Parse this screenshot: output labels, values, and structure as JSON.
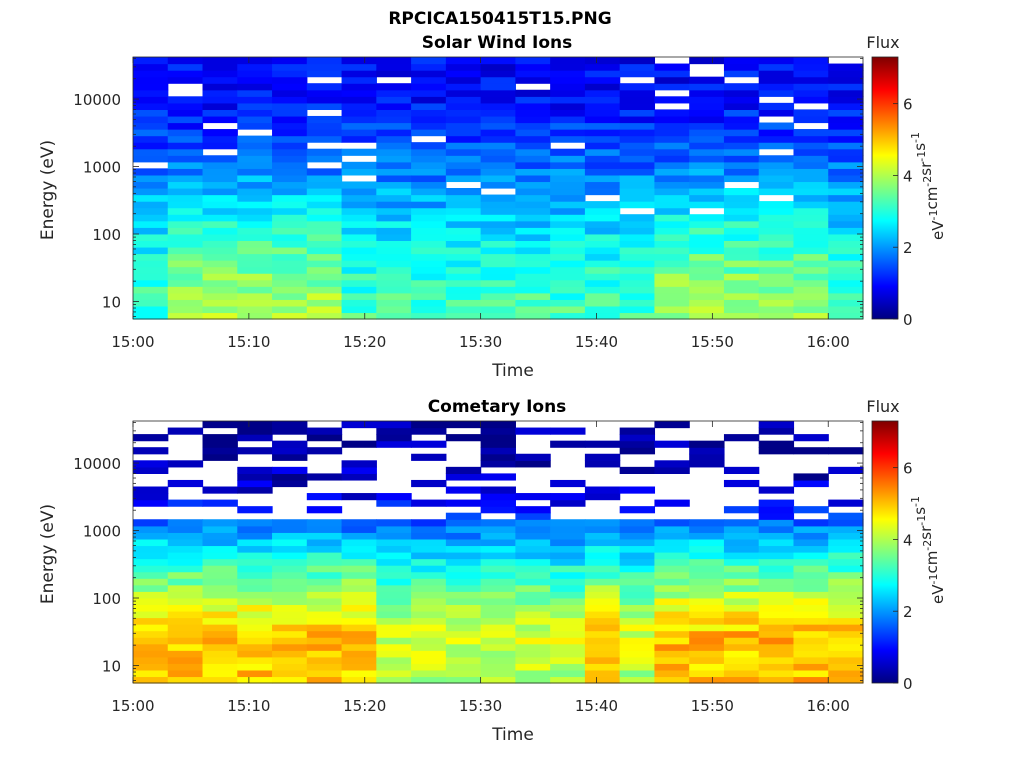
{
  "figure_title": "RPCICA150415T15.PNG",
  "colors": {
    "colormap": "jet",
    "colormap_stops": [
      "#00007f",
      "#0000ff",
      "#007fff",
      "#00ffff",
      "#7fff7f",
      "#ffff00",
      "#ff7f00",
      "#ff0000",
      "#7f0000"
    ]
  },
  "chart_data": [
    {
      "type": "heatmap",
      "title": "Solar Wind Ions",
      "xlabel": "Time",
      "ylabel": "Energy (eV)",
      "x_ticks": [
        "15:00",
        "15:10",
        "15:20",
        "15:30",
        "15:40",
        "15:50",
        "16:00"
      ],
      "xlim": [
        "15:00",
        "16:03"
      ],
      "y_scale": "log",
      "y_ticks": [
        "10",
        "100",
        "1000",
        "10000"
      ],
      "ylim": [
        5.5,
        42000
      ],
      "colorbar": {
        "title": "Flux",
        "unit": "eV-1cm-2sr-1s-1",
        "range": [
          0,
          7.3
        ],
        "ticks": [
          "0",
          "2",
          "4",
          "6"
        ]
      },
      "time_bins": 21,
      "bright_columns_minutes": [
        6,
        9,
        12,
        15,
        48,
        54,
        57
      ],
      "flux_profile_by_energy": [
        {
          "energy_eV": 8,
          "flux": 3.2
        },
        {
          "energy_eV": 30,
          "flux": 3.0
        },
        {
          "energy_eV": 100,
          "flux": 2.6
        },
        {
          "energy_eV": 300,
          "flux": 2.2
        },
        {
          "energy_eV": 1000,
          "flux": 1.7
        },
        {
          "energy_eV": 3000,
          "flux": 1.3
        },
        {
          "energy_eV": 10000,
          "flux": 1.0
        },
        {
          "energy_eV": 30000,
          "flux": 0.9
        }
      ]
    },
    {
      "type": "heatmap",
      "title": "Cometary Ions",
      "xlabel": "Time",
      "ylabel": "Energy (eV)",
      "x_ticks": [
        "15:00",
        "15:10",
        "15:20",
        "15:30",
        "15:40",
        "15:50",
        "16:00"
      ],
      "xlim": [
        "15:00",
        "16:03"
      ],
      "y_scale": "log",
      "y_ticks": [
        "10",
        "100",
        "1000",
        "10000"
      ],
      "ylim": [
        5.5,
        42000
      ],
      "colorbar": {
        "title": "Flux",
        "unit": "eV-1cm-2sr-1s-1",
        "range": [
          0,
          7.3
        ],
        "ticks": [
          "0",
          "2",
          "4",
          "6"
        ]
      },
      "time_bins": 21,
      "bright_columns_minutes": [
        3,
        6,
        9,
        12,
        15,
        18,
        41,
        48,
        54,
        57,
        60
      ],
      "flux_profile_by_energy": [
        {
          "energy_eV": 8,
          "flux": 4.0
        },
        {
          "energy_eV": 30,
          "flux": 4.3
        },
        {
          "energy_eV": 100,
          "flux": 3.6
        },
        {
          "energy_eV": 300,
          "flux": 2.8
        },
        {
          "energy_eV": 1000,
          "flux": 1.8
        },
        {
          "energy_eV": 3000,
          "flux": 0.8
        },
        {
          "energy_eV": 10000,
          "flux": 0.3
        },
        {
          "energy_eV": 30000,
          "flux": 0.2
        }
      ]
    }
  ]
}
